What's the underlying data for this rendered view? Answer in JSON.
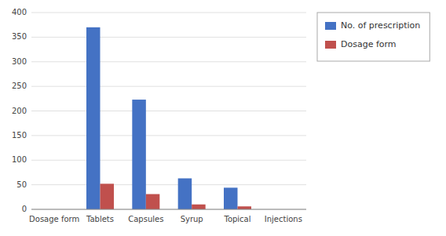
{
  "chart_data": {
    "type": "bar",
    "categories": [
      "Dosage form",
      "Tablets",
      "Capsules",
      "Syrup",
      "Topical",
      "Injections"
    ],
    "series": [
      {
        "name": "No. of prescription",
        "color": "#4472C4",
        "values": [
          0,
          370,
          223,
          63,
          44,
          0
        ]
      },
      {
        "name": "Dosage form",
        "color": "#C0504D",
        "values": [
          0,
          52,
          31,
          10,
          6,
          0
        ]
      }
    ],
    "ylim": [
      0,
      400
    ],
    "yticks": [
      0,
      50,
      100,
      150,
      200,
      250,
      300,
      350,
      400
    ],
    "grid": true,
    "legend": "right"
  }
}
